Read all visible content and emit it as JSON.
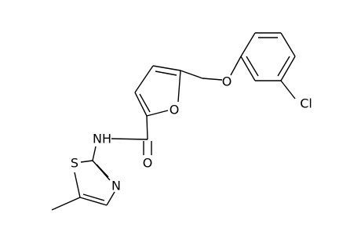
{
  "molecule": {
    "atoms": [
      {
        "label": "O"
      },
      {
        "label": "O"
      },
      {
        "label": "Cl"
      },
      {
        "label": "NH"
      },
      {
        "label": "O"
      },
      {
        "label": "S"
      },
      {
        "label": "N"
      }
    ]
  }
}
